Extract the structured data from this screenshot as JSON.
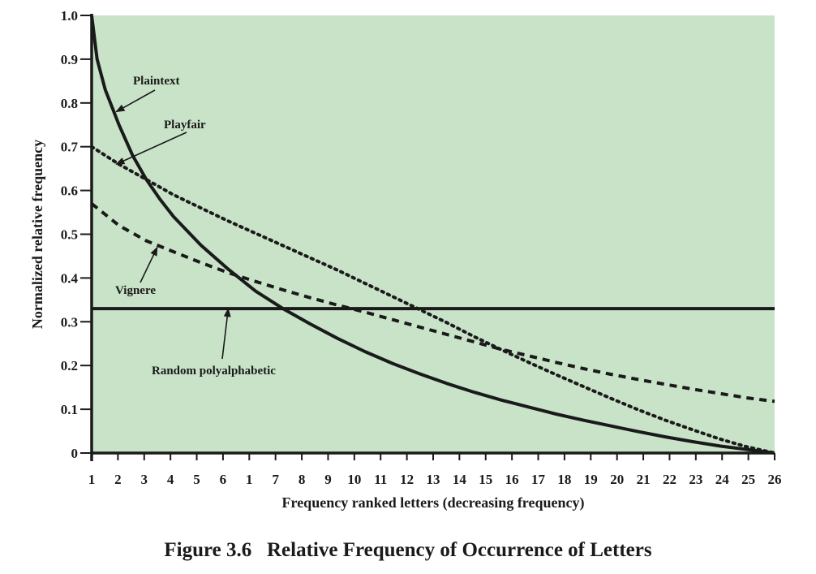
{
  "figure": {
    "caption": "Figure 3.6   Relative Frequency of Occurrence of Letters"
  },
  "colors": {
    "plot_background": "#c9e3c9",
    "line": "#1a1a1a",
    "text": "#1a1a1a"
  },
  "chart_data": {
    "type": "line",
    "xlabel": "Frequency ranked letters (decreasing frequency)",
    "ylabel": "Normalized relative frequency",
    "x_tick_labels": [
      "1",
      "2",
      "3",
      "4",
      "5",
      "6",
      "1",
      "7",
      "8",
      "9",
      "10",
      "11",
      "12",
      "13",
      "14",
      "15",
      "16",
      "17",
      "18",
      "19",
      "20",
      "21",
      "22",
      "23",
      "24",
      "25",
      "26"
    ],
    "y_ticks": [
      "0",
      "0.1",
      "0.2",
      "0.3",
      "0.4",
      "0.5",
      "0.6",
      "0.7",
      "0.8",
      "0.9",
      "1.0"
    ],
    "xlim": [
      1,
      26
    ],
    "ylim": [
      0,
      1.0
    ],
    "grid": false,
    "legend": "none",
    "series": [
      {
        "name": "Plaintext",
        "style": "solid",
        "x": [
          1,
          1.2,
          1.5,
          2,
          2.5,
          3,
          3.5,
          4,
          5,
          6,
          7,
          8,
          9,
          10,
          11,
          12,
          13,
          14,
          15,
          16,
          17,
          18,
          19,
          20,
          21,
          22,
          23,
          24,
          25,
          26
        ],
        "y": [
          1.0,
          0.9,
          0.83,
          0.75,
          0.68,
          0.625,
          0.58,
          0.54,
          0.475,
          0.42,
          0.37,
          0.33,
          0.295,
          0.262,
          0.232,
          0.205,
          0.181,
          0.159,
          0.139,
          0.121,
          0.105,
          0.089,
          0.075,
          0.062,
          0.049,
          0.037,
          0.026,
          0.016,
          0.008,
          0.0
        ]
      },
      {
        "name": "Playfair",
        "style": "dotted",
        "x": [
          1,
          2,
          3,
          4,
          5,
          6,
          7,
          8,
          9,
          10,
          11,
          12,
          13,
          14,
          15,
          16,
          17,
          18,
          19,
          20,
          21,
          22,
          23,
          24,
          25,
          26
        ],
        "y": [
          0.7,
          0.66,
          0.625,
          0.59,
          0.56,
          0.53,
          0.502,
          0.474,
          0.446,
          0.418,
          0.388,
          0.358,
          0.328,
          0.298,
          0.266,
          0.236,
          0.207,
          0.179,
          0.152,
          0.125,
          0.099,
          0.075,
          0.053,
          0.032,
          0.014,
          0.0
        ]
      },
      {
        "name": "Vignere",
        "style": "dashed",
        "x": [
          1,
          2,
          3,
          4,
          5,
          6,
          7,
          8,
          9,
          10,
          11,
          12,
          13,
          14,
          15,
          16,
          17,
          18,
          19,
          20,
          21,
          22,
          23,
          24,
          25,
          26
        ],
        "y": [
          0.57,
          0.52,
          0.485,
          0.46,
          0.435,
          0.412,
          0.392,
          0.373,
          0.355,
          0.338,
          0.322,
          0.305,
          0.288,
          0.271,
          0.254,
          0.237,
          0.222,
          0.207,
          0.193,
          0.18,
          0.168,
          0.157,
          0.146,
          0.136,
          0.126,
          0.118
        ]
      },
      {
        "name": "Random polyalphabetic",
        "style": "solid",
        "x": [
          1,
          26
        ],
        "y": [
          0.33,
          0.33
        ]
      }
    ],
    "annotations": [
      {
        "label": "Plaintext",
        "target_x": 1.9,
        "target_y": 0.78
      },
      {
        "label": "Playfair",
        "target_x": 1.9,
        "target_y": 0.66
      },
      {
        "label": "Vignere",
        "target_x": 3.4,
        "target_y": 0.47
      },
      {
        "label": "Random polyalphabetic",
        "target_x": 6.0,
        "target_y": 0.33
      }
    ]
  }
}
